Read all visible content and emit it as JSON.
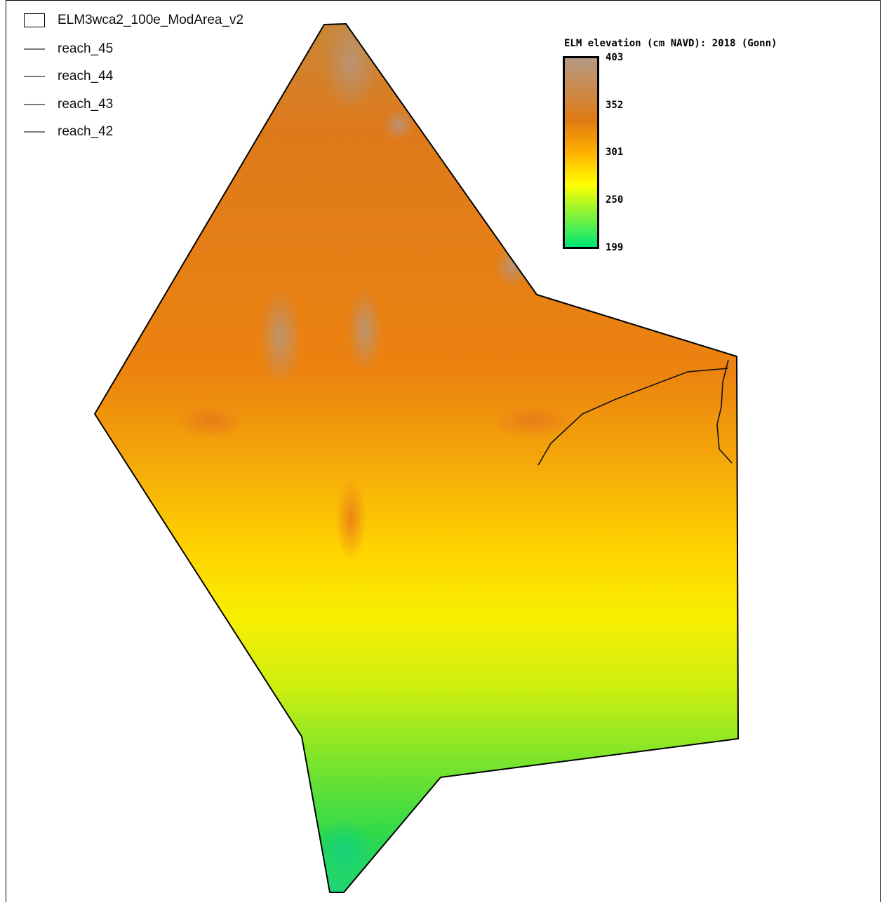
{
  "legend": {
    "items": [
      {
        "label": "ELM3wca2_100e_ModArea_v2",
        "symbol": "polygon"
      },
      {
        "label": "reach_45",
        "symbol": "line"
      },
      {
        "label": "reach_44",
        "symbol": "line"
      },
      {
        "label": "reach_43",
        "symbol": "line"
      },
      {
        "label": "reach_42",
        "symbol": "line"
      }
    ]
  },
  "colorbar": {
    "title": "ELM elevation (cm NAVD): 2018 (Gonn)",
    "ticks": [
      "403",
      "352",
      "301",
      "250",
      "199"
    ],
    "colors": [
      "#b59a84",
      "#e07a14",
      "#ffff00",
      "#00e676"
    ]
  },
  "map": {
    "layer": "ELM elevation",
    "value_range": [
      199,
      403
    ],
    "outline_color": "#000000",
    "reach_color": "#111111"
  }
}
